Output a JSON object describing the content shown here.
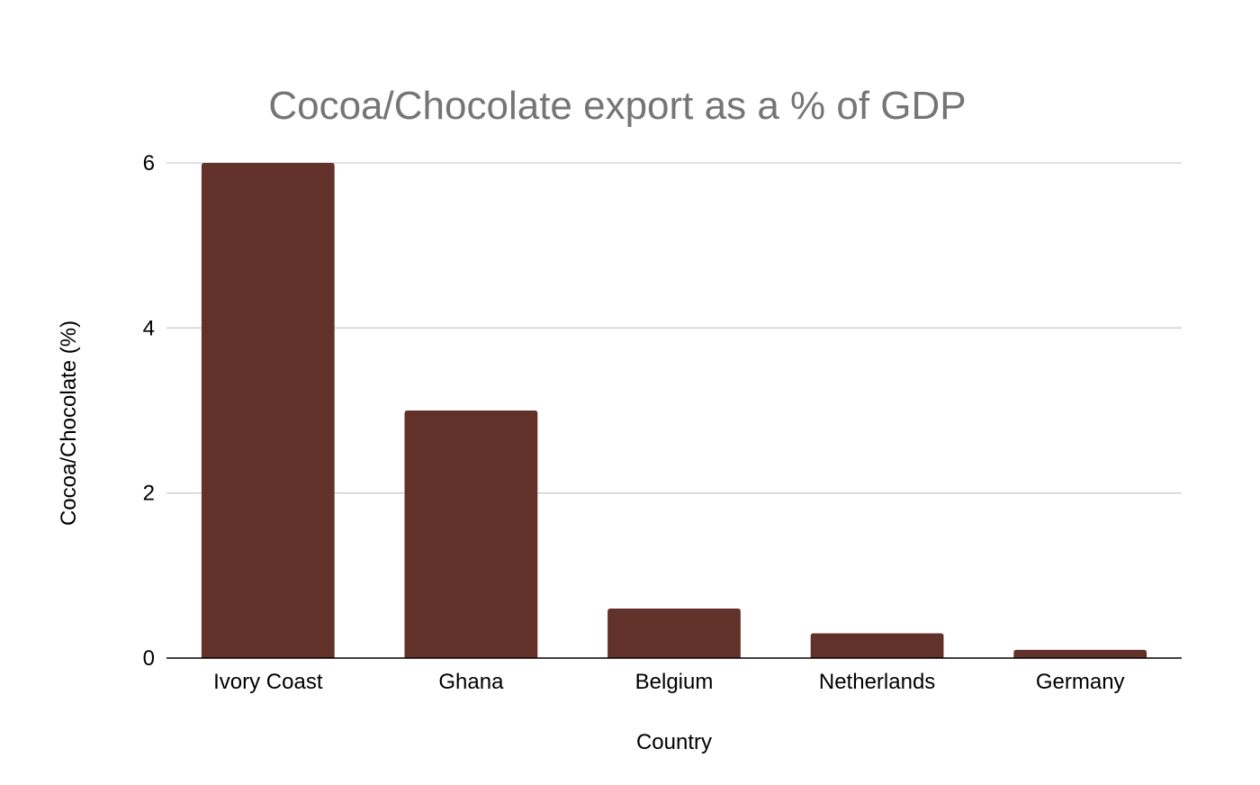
{
  "chart_data": {
    "type": "bar",
    "title": "Cocoa/Chocolate export as a % of GDP",
    "xlabel": "Country",
    "ylabel": "Cocoa/Chocolate (%)",
    "categories": [
      "Ivory Coast",
      "Ghana",
      "Belgium",
      "Netherlands",
      "Germany"
    ],
    "values": [
      6,
      3,
      0.6,
      0.3,
      0.1
    ],
    "ylim": [
      0,
      6
    ],
    "yticks": [
      "0",
      "2",
      "4",
      "6"
    ],
    "grid": true,
    "legend": "none",
    "bar_color": "#623129"
  }
}
